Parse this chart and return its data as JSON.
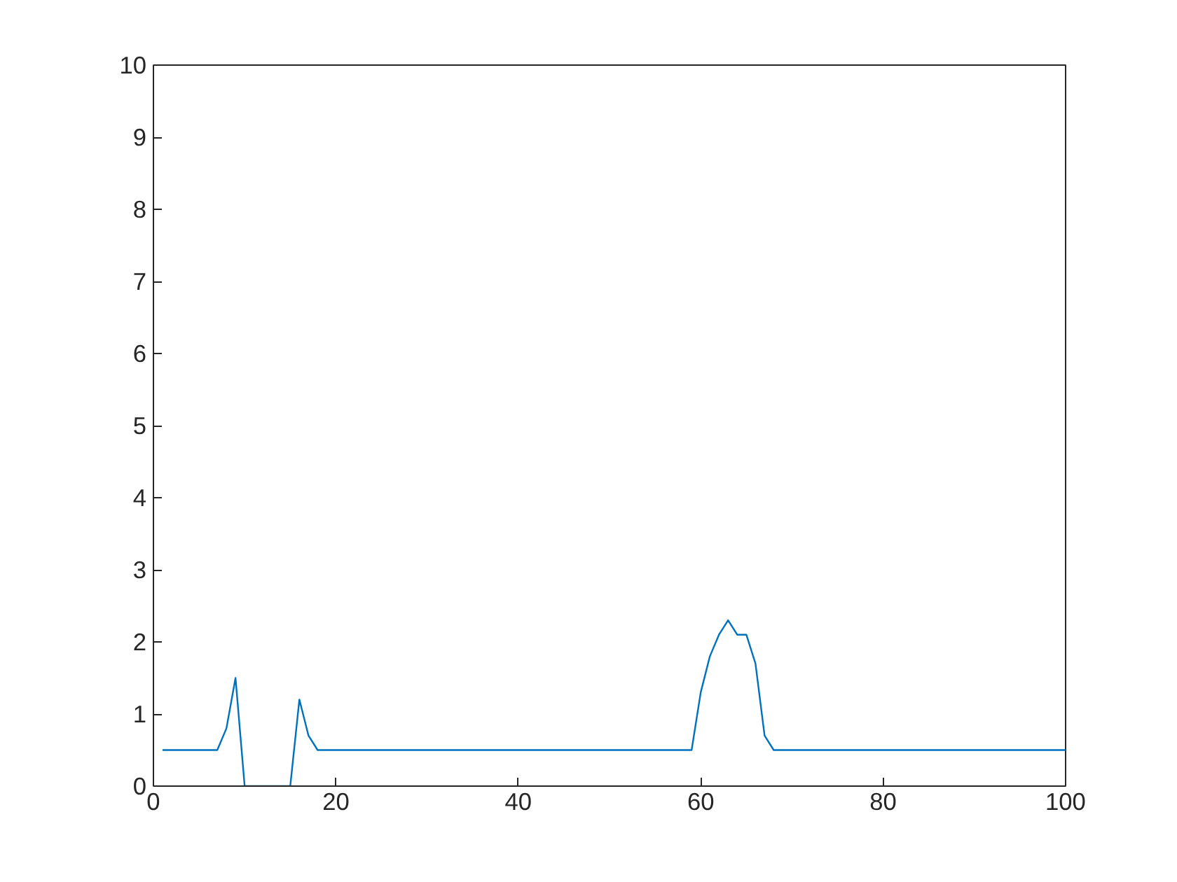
{
  "chart_data": {
    "type": "line",
    "x": [
      1,
      2,
      3,
      4,
      5,
      6,
      7,
      8,
      9,
      10,
      11,
      12,
      13,
      14,
      15,
      16,
      17,
      18,
      19,
      20,
      21,
      22,
      23,
      24,
      25,
      26,
      27,
      28,
      29,
      30,
      31,
      32,
      33,
      34,
      35,
      36,
      37,
      38,
      39,
      40,
      41,
      42,
      43,
      44,
      45,
      46,
      47,
      48,
      49,
      50,
      51,
      52,
      53,
      54,
      55,
      56,
      57,
      58,
      59,
      60,
      61,
      62,
      63,
      64,
      65,
      66,
      67,
      68,
      69,
      70,
      71,
      72,
      73,
      74,
      75,
      76,
      77,
      78,
      79,
      80,
      81,
      82,
      83,
      84,
      85,
      86,
      87,
      88,
      89,
      90,
      91,
      92,
      93,
      94,
      95,
      96,
      97,
      98,
      99,
      100
    ],
    "series": [
      {
        "color": "#0072bd",
        "values": [
          0.5,
          0.5,
          0.5,
          0.5,
          0.5,
          0.5,
          0.5,
          0.8,
          1.5,
          0,
          0,
          0,
          0,
          0,
          0,
          1.2,
          0.7,
          0.5,
          0.5,
          0.5,
          0.5,
          0.5,
          0.5,
          0.5,
          0.5,
          0.5,
          0.5,
          0.5,
          0.5,
          0.5,
          0.5,
          0.5,
          0.5,
          0.5,
          0.5,
          0.5,
          0.5,
          0.5,
          0.5,
          0.5,
          0.5,
          0.5,
          0.5,
          0.5,
          0.5,
          0.5,
          0.5,
          0.5,
          0.5,
          0.5,
          0.5,
          0.5,
          0.5,
          0.5,
          0.5,
          0.5,
          0.5,
          0.5,
          0.5,
          1.3,
          1.8,
          2.1,
          2.3,
          2.1,
          2.1,
          1.7,
          0.7,
          0.5,
          0.5,
          0.5,
          0.5,
          0.5,
          0.5,
          0.5,
          0.5,
          0.5,
          0.5,
          0.5,
          0.5,
          0.5,
          0.5,
          0.5,
          0.5,
          0.5,
          0.5,
          0.5,
          0.5,
          0.5,
          0.5,
          0.5,
          0.5,
          0.5,
          0.5,
          0.5,
          0.5,
          0.5,
          0.5,
          0.5,
          0.5,
          0.5
        ]
      }
    ],
    "xlim": [
      0,
      100
    ],
    "xticks": [
      0,
      20,
      40,
      60,
      80,
      100
    ],
    "ylim": [
      0,
      10
    ],
    "yticks": [
      0,
      1,
      2,
      3,
      4,
      5,
      6,
      7,
      8,
      9,
      10
    ],
    "grid": false,
    "marker": "none",
    "line_style": "solid"
  }
}
